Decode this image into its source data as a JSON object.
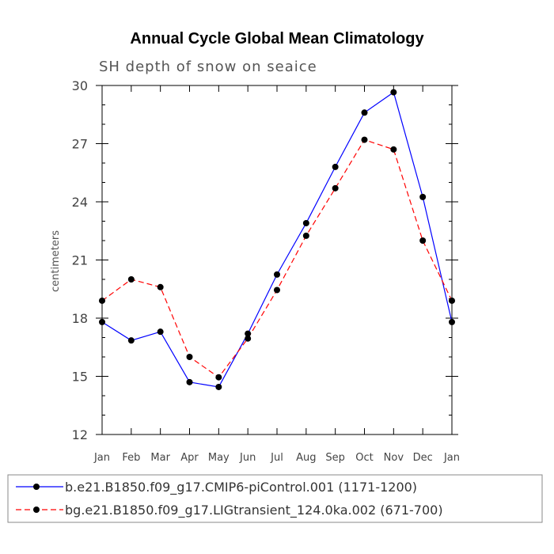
{
  "chart_data": {
    "type": "line",
    "title": "Annual Cycle Global Mean Climatology",
    "subtitle": "SH depth of snow on seaice",
    "xlabel": "",
    "ylabel": "centimeters",
    "ylim": [
      12,
      30
    ],
    "yticks": [
      12,
      15,
      18,
      21,
      24,
      27,
      30
    ],
    "categories": [
      "Jan",
      "Feb",
      "Mar",
      "Apr",
      "May",
      "Jun",
      "Jul",
      "Aug",
      "Sep",
      "Oct",
      "Nov",
      "Dec",
      "Jan"
    ],
    "series": [
      {
        "name": "b.e21.B1850.f09_g17.CMIP6-piControl.001 (1171-1200)",
        "color": "#0000ff",
        "dash": "solid",
        "values": [
          17.8,
          16.85,
          17.3,
          14.7,
          14.45,
          17.2,
          20.25,
          22.9,
          25.8,
          28.6,
          29.65,
          24.25,
          17.8
        ]
      },
      {
        "name": "bg.e21.B1850.f09_g17.LIGtransient_124.0ka.002 (671-700)",
        "color": "#ff0000",
        "dash": "dashed",
        "values": [
          18.9,
          20.0,
          19.6,
          16.0,
          14.95,
          16.95,
          19.45,
          22.25,
          24.7,
          27.2,
          26.7,
          22.0,
          18.9
        ]
      }
    ]
  }
}
